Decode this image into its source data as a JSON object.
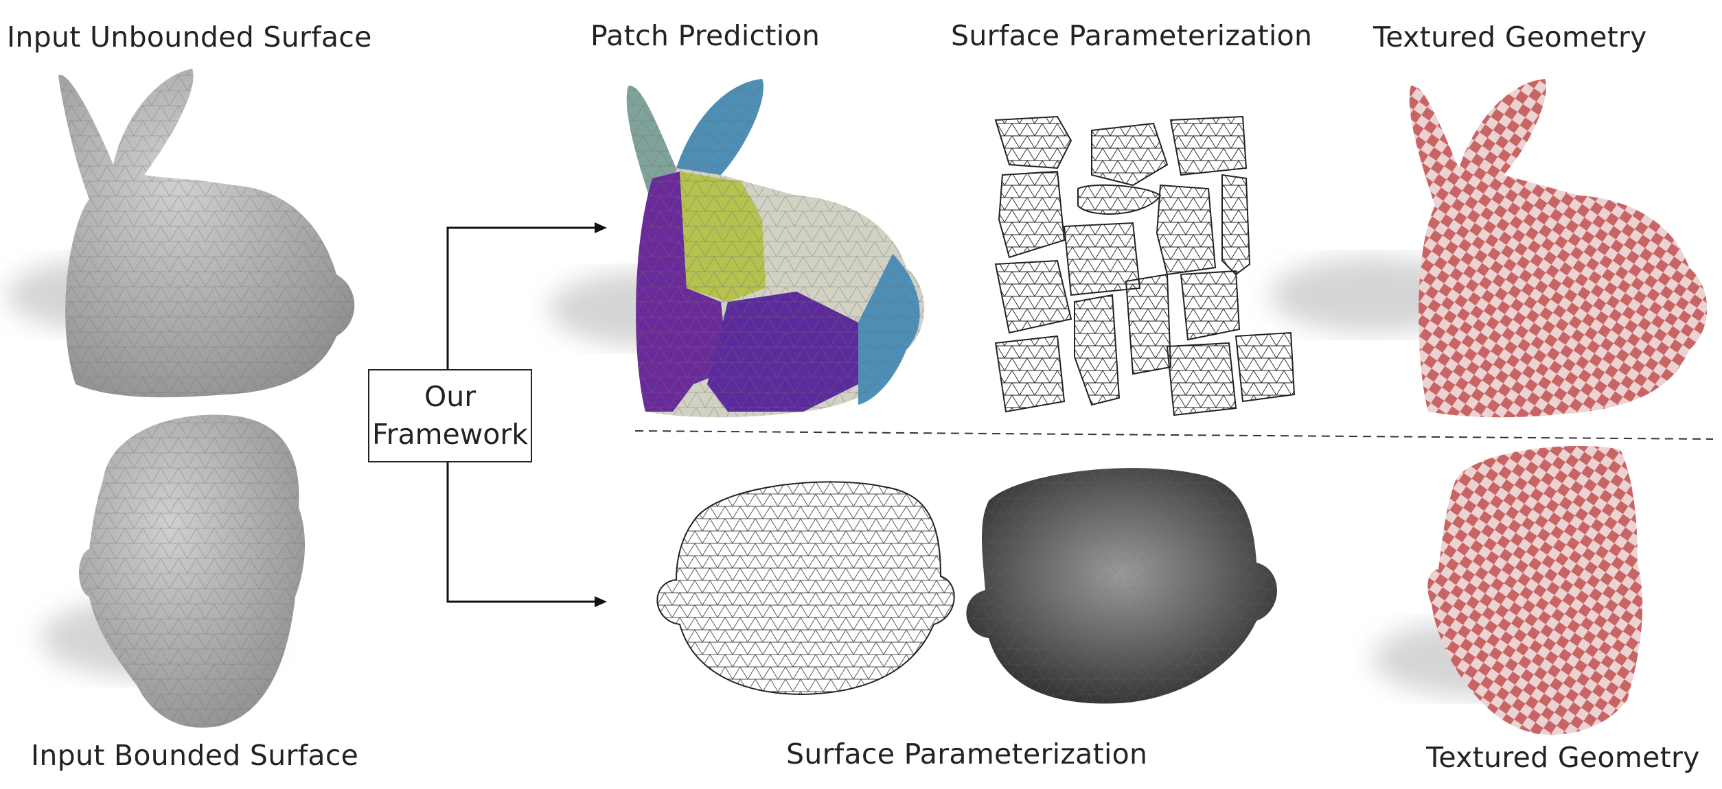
{
  "labels": {
    "input_unbounded": "Input Unbounded Surface",
    "patch_prediction": "Patch Prediction",
    "surface_param_top": "Surface Parameterization",
    "textured_top": "Textured Geometry",
    "input_bounded": "Input Bounded Surface",
    "surface_param_bottom": "Surface Parameterization",
    "textured_bottom": "Textured Geometry"
  },
  "framework": {
    "line1": "Our",
    "line2": "Framework"
  },
  "colors": {
    "mesh_gray": "#b4b4b4",
    "patch_purple": "#6a2a9a",
    "patch_lime": "#b5c24e",
    "patch_beige": "#d2d2c4",
    "patch_blue": "#4d8fb6",
    "patch_teal": "#7fa39a",
    "checker_red": "#c96464",
    "checker_light": "#ecd3d3"
  },
  "icons": [
    "bunny-mesh",
    "head-mesh",
    "uv-patches",
    "uv-face-wireframe",
    "uv-face-shaded",
    "checker-bunny",
    "checker-head"
  ]
}
